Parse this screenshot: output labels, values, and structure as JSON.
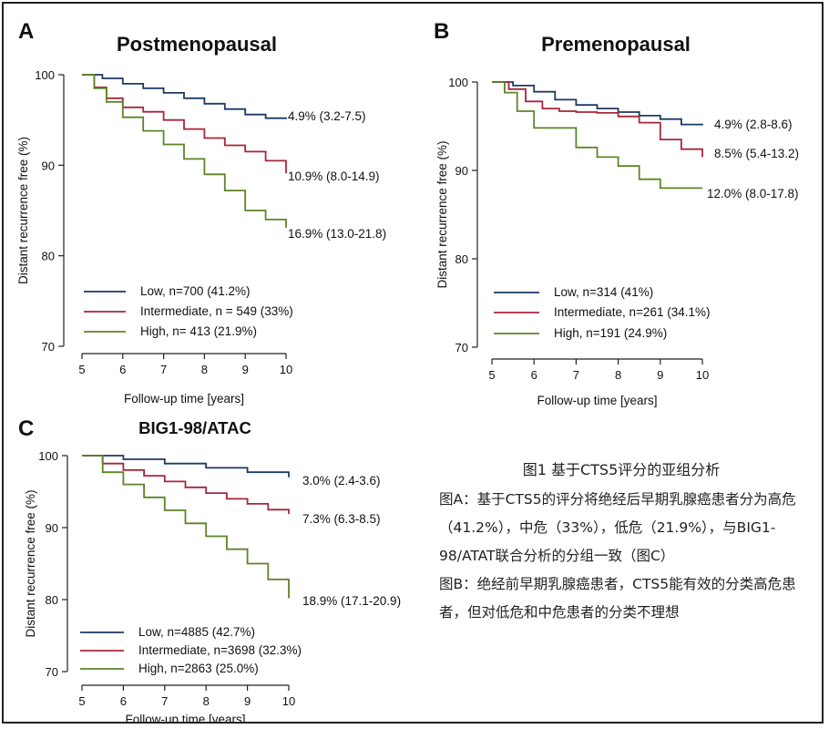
{
  "colors": {
    "low": "#1c3a63",
    "intermediate": "#a8263b",
    "high": "#5e8427"
  },
  "chart_data": [
    {
      "type": "line",
      "panel": "A",
      "title": "Postmenopausal",
      "xlabel": "Follow-up time [years]",
      "ylabel": "Distant recurrence free (%)",
      "xlim": [
        5,
        10
      ],
      "ylim": [
        70,
        100
      ],
      "x_ticks": [
        "5",
        "6",
        "7",
        "8",
        "9",
        "10"
      ],
      "y_ticks": [
        "70",
        "80",
        "90",
        "100"
      ],
      "legend": [
        "Low, n=700 (41.2%)",
        "Intermediate, n = 549 (33%)",
        "High, n= 413 (21.9%)"
      ],
      "end_labels": [
        "4.9% (3.2-7.5)",
        "10.9% (8.0-14.9)",
        "16.9% (13.0-21.8)"
      ],
      "series": [
        {
          "name": "Low",
          "x": [
            5,
            5.5,
            6,
            6.5,
            7,
            7.5,
            8,
            8.5,
            9,
            9.5,
            10
          ],
          "values": [
            100,
            99.6,
            99.0,
            98.5,
            98.0,
            97.4,
            96.8,
            96.2,
            95.6,
            95.2,
            95.1
          ]
        },
        {
          "name": "Intermediate",
          "x": [
            5,
            5.3,
            5.6,
            6,
            6.5,
            7,
            7.5,
            8,
            8.5,
            9,
            9.5,
            10
          ],
          "values": [
            100,
            98.6,
            97.4,
            96.4,
            95.9,
            95.0,
            94.0,
            93.0,
            92.2,
            91.5,
            90.5,
            89.1
          ]
        },
        {
          "name": "High",
          "x": [
            5,
            5.3,
            5.6,
            6,
            6.5,
            7,
            7.5,
            8,
            8.5,
            9,
            9.5,
            10
          ],
          "values": [
            100,
            98.5,
            97.0,
            95.3,
            93.8,
            92.3,
            90.7,
            89.0,
            87.2,
            85.0,
            84.0,
            83.1
          ]
        }
      ]
    },
    {
      "type": "line",
      "panel": "B",
      "title": "Premenopausal",
      "xlabel": "Follow-up time [years]",
      "ylabel": "Distant recurrence free (%)",
      "xlim": [
        5,
        10
      ],
      "ylim": [
        70,
        100
      ],
      "x_ticks": [
        "5",
        "6",
        "7",
        "8",
        "9",
        "10"
      ],
      "y_ticks": [
        "70",
        "80",
        "90",
        "100"
      ],
      "legend": [
        "Low, n=314 (41%)",
        "Intermediate, n=261 (34.1%)",
        "High, n=191  (24.9%)"
      ],
      "end_labels": [
        "4.9% (2.8-8.6)",
        "8.5% (5.4-13.2)",
        "12.0% (8.0-17.8)"
      ],
      "series": [
        {
          "name": "Low",
          "x": [
            5,
            5.5,
            6,
            6.5,
            7,
            7.5,
            8,
            8.5,
            9,
            9.5,
            10
          ],
          "values": [
            100,
            99.6,
            98.9,
            98.0,
            97.4,
            97.0,
            96.6,
            96.2,
            95.8,
            95.2,
            95.1
          ]
        },
        {
          "name": "Intermediate",
          "x": [
            5,
            5.4,
            5.8,
            6.2,
            6.6,
            7,
            7.5,
            8,
            8.5,
            9,
            9.5,
            10
          ],
          "values": [
            100,
            99.2,
            97.8,
            97.0,
            96.7,
            96.6,
            96.5,
            96.1,
            95.4,
            93.5,
            92.4,
            91.5
          ]
        },
        {
          "name": "High",
          "x": [
            5,
            5.3,
            5.6,
            6,
            6.5,
            7,
            7.5,
            8,
            8.5,
            9,
            9.5,
            10
          ],
          "values": [
            100,
            98.8,
            96.7,
            94.8,
            94.8,
            92.6,
            91.5,
            90.5,
            89.0,
            88.0,
            88.0,
            88.0
          ]
        }
      ]
    },
    {
      "type": "line",
      "panel": "C",
      "title": "BIG1-98/ATAC",
      "xlabel": "Follow-up time [years]",
      "ylabel": "Distant recurrence free (%)",
      "xlim": [
        5,
        10
      ],
      "ylim": [
        70,
        100
      ],
      "x_ticks": [
        "5",
        "6",
        "7",
        "8",
        "9",
        "10"
      ],
      "y_ticks": [
        "70",
        "80",
        "90",
        "100"
      ],
      "legend": [
        "Low, n=4885 (42.7%)",
        "Intermediate, n=3698 (32.3%)",
        "High, n=2863  (25.0%)"
      ],
      "end_labels": [
        "3.0% (2.4-3.6)",
        "7.3% (6.3-8.5)",
        "18.9% (17.1-20.9)"
      ],
      "series": [
        {
          "name": "Low",
          "x": [
            5,
            6,
            7,
            8,
            9,
            10
          ],
          "values": [
            100,
            99.5,
            98.9,
            98.3,
            97.7,
            97.0
          ]
        },
        {
          "name": "Intermediate",
          "x": [
            5,
            5.5,
            6,
            6.5,
            7,
            7.5,
            8,
            8.5,
            9,
            9.5,
            10
          ],
          "values": [
            100,
            98.9,
            98.0,
            97.2,
            96.4,
            95.6,
            94.8,
            94.0,
            93.3,
            92.5,
            91.9
          ]
        },
        {
          "name": "High",
          "x": [
            5,
            5.5,
            6,
            6.5,
            7,
            7.5,
            8,
            8.5,
            9,
            9.5,
            10
          ],
          "values": [
            100,
            97.7,
            96.0,
            94.2,
            92.4,
            90.6,
            88.8,
            87.0,
            85.0,
            82.8,
            80.2
          ]
        }
      ]
    }
  ],
  "caption": {
    "title": "图1 基于CTS5评分的亚组分析",
    "lines": [
      "图A：基于CTS5的评分将绝经后早期乳腺癌患者分为高危（41.2%），中危（33%），低危（21.9%），与BIG1-98/ATAT联合分析的分组一致（图C）",
      "图B：绝经前早期乳腺癌患者，CTS5能有效的分类高危患者，但对低危和中危患者的分类不理想"
    ]
  }
}
